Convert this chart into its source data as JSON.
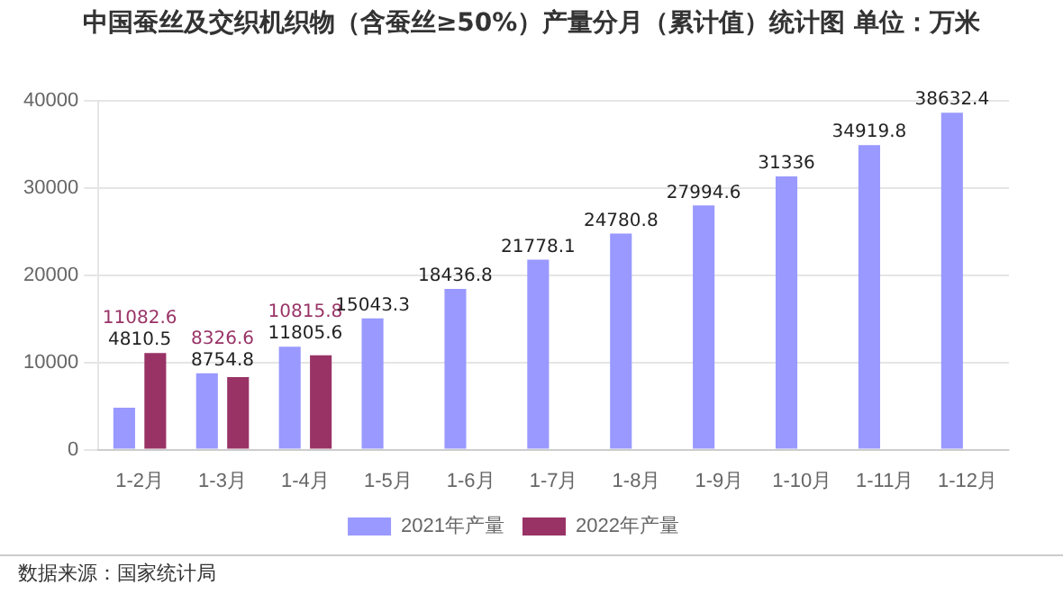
{
  "chart_data": {
    "type": "bar",
    "title": "中国蚕丝及交织机织物（含蚕丝≥50%）产量分月（累计值）统计图 单位：万米",
    "categories": [
      "1-2月",
      "1-3月",
      "1-4月",
      "1-5月",
      "1-6月",
      "1-7月",
      "1-8月",
      "1-9月",
      "1-10月",
      "1-11月",
      "1-12月"
    ],
    "series": [
      {
        "name": "2021年产量",
        "color": "#9999ff",
        "values": [
          4810.5,
          8754.8,
          11805.6,
          15043.3,
          18436.8,
          21778.1,
          24780.8,
          27994.6,
          31336,
          34919.8,
          38632.4
        ]
      },
      {
        "name": "2022年产量",
        "color": "#993366",
        "values": [
          11082.6,
          8326.6,
          10815.8,
          null,
          null,
          null,
          null,
          null,
          null,
          null,
          null
        ]
      }
    ],
    "ylim": [
      0,
      40000
    ],
    "yticks": [
      0,
      10000,
      20000,
      30000,
      40000
    ],
    "grid": "y",
    "legend": "bottom",
    "data_labels": true,
    "annotations": [
      "数据来源：国家统计局"
    ]
  }
}
